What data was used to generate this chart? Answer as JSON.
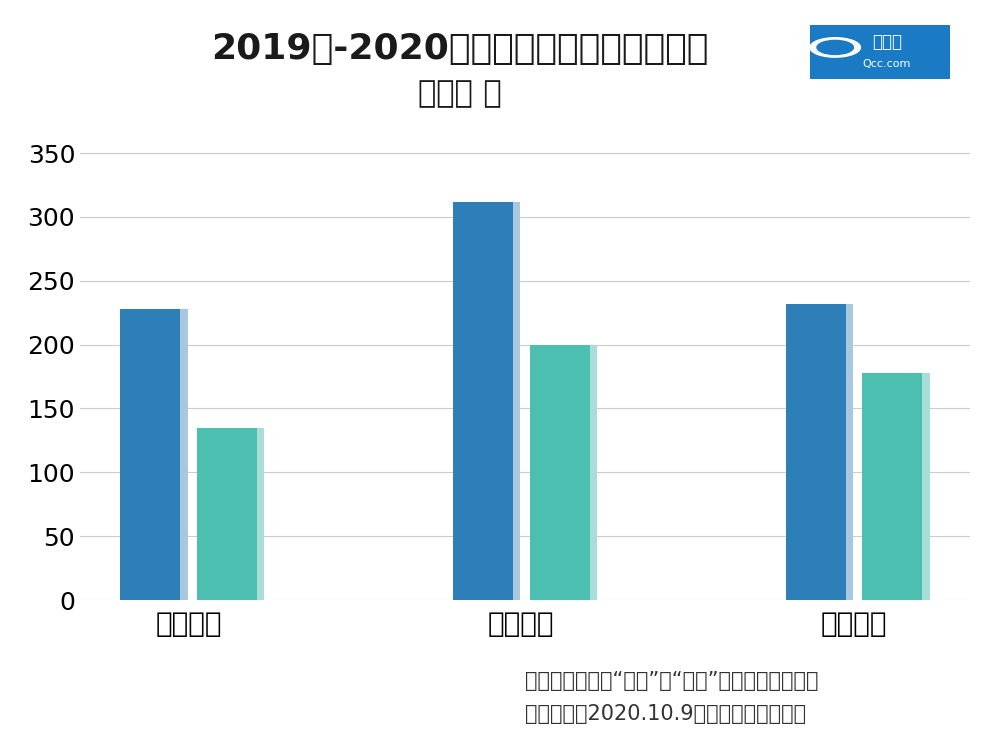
{
  "title_line1": "2019年-2020年马术赛马相关企业注册量",
  "title_line2": "单位： 家",
  "categories": [
    "第一季度",
    "第二季度",
    "第三季度"
  ],
  "series_2019": [
    228,
    312,
    232
  ],
  "series_2020": [
    135,
    200,
    178
  ],
  "color_2019": "#2E7FB8",
  "color_2020": "#4DBFB0",
  "color_2019_light": "#A8C8E0",
  "color_2020_light": "#A8DDD8",
  "ylim": [
    0,
    370
  ],
  "yticks": [
    0,
    50,
    100,
    150,
    200,
    250,
    300,
    350
  ],
  "background_color": "#FFFFFF",
  "grid_color": "#CCCCCC",
  "footnote_line1": "仅统计关键词为“赛马”、“马术”的相关企业数量；",
  "footnote_line2": "数据截至：2020.10.9；数据来源：企查查",
  "title_fontsize": 26,
  "subtitle_fontsize": 22,
  "tick_fontsize": 18,
  "category_fontsize": 20,
  "footnote_fontsize": 15,
  "logo_text1": "企查查",
  "logo_text2": "Qcc.com"
}
